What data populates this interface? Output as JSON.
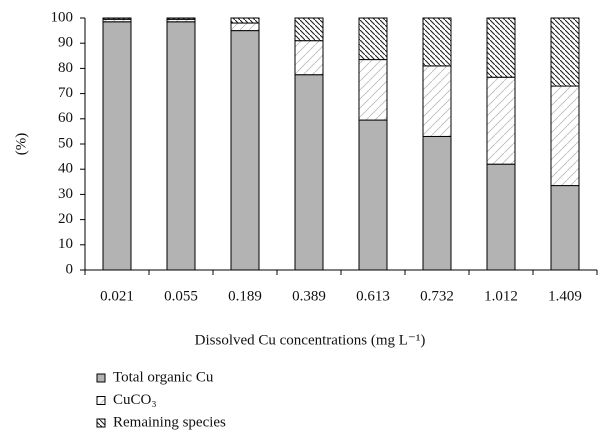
{
  "chart_data": {
    "type": "stacked-bar",
    "x_label": "Dissolved Cu concentrations (mg L⁻¹)",
    "y_label": "(%)",
    "categories": [
      "0.021",
      "0.055",
      "0.189",
      "0.389",
      "0.613",
      "0.732",
      "1.012",
      "1.409"
    ],
    "series": [
      {
        "name": "Total organic Cu",
        "color": "#b3b3b3",
        "values": [
          98.5,
          98.5,
          95,
          77.5,
          59.5,
          53,
          42,
          33.5
        ]
      },
      {
        "name": "CuCO₃",
        "color": "#bdbdbd",
        "hatch": "/",
        "values": [
          1,
          1,
          3,
          13.5,
          24,
          28,
          34.5,
          39.5
        ]
      },
      {
        "name": "Remaining species",
        "color": "#222222",
        "hatch": "\\",
        "values": [
          0.5,
          0.5,
          2,
          9,
          16.5,
          19,
          23.5,
          27
        ]
      }
    ],
    "ylim": [
      0,
      100
    ],
    "yticks": [
      0,
      10,
      20,
      30,
      40,
      50,
      60,
      70,
      80,
      90,
      100
    ],
    "legend": "bottom-left"
  }
}
